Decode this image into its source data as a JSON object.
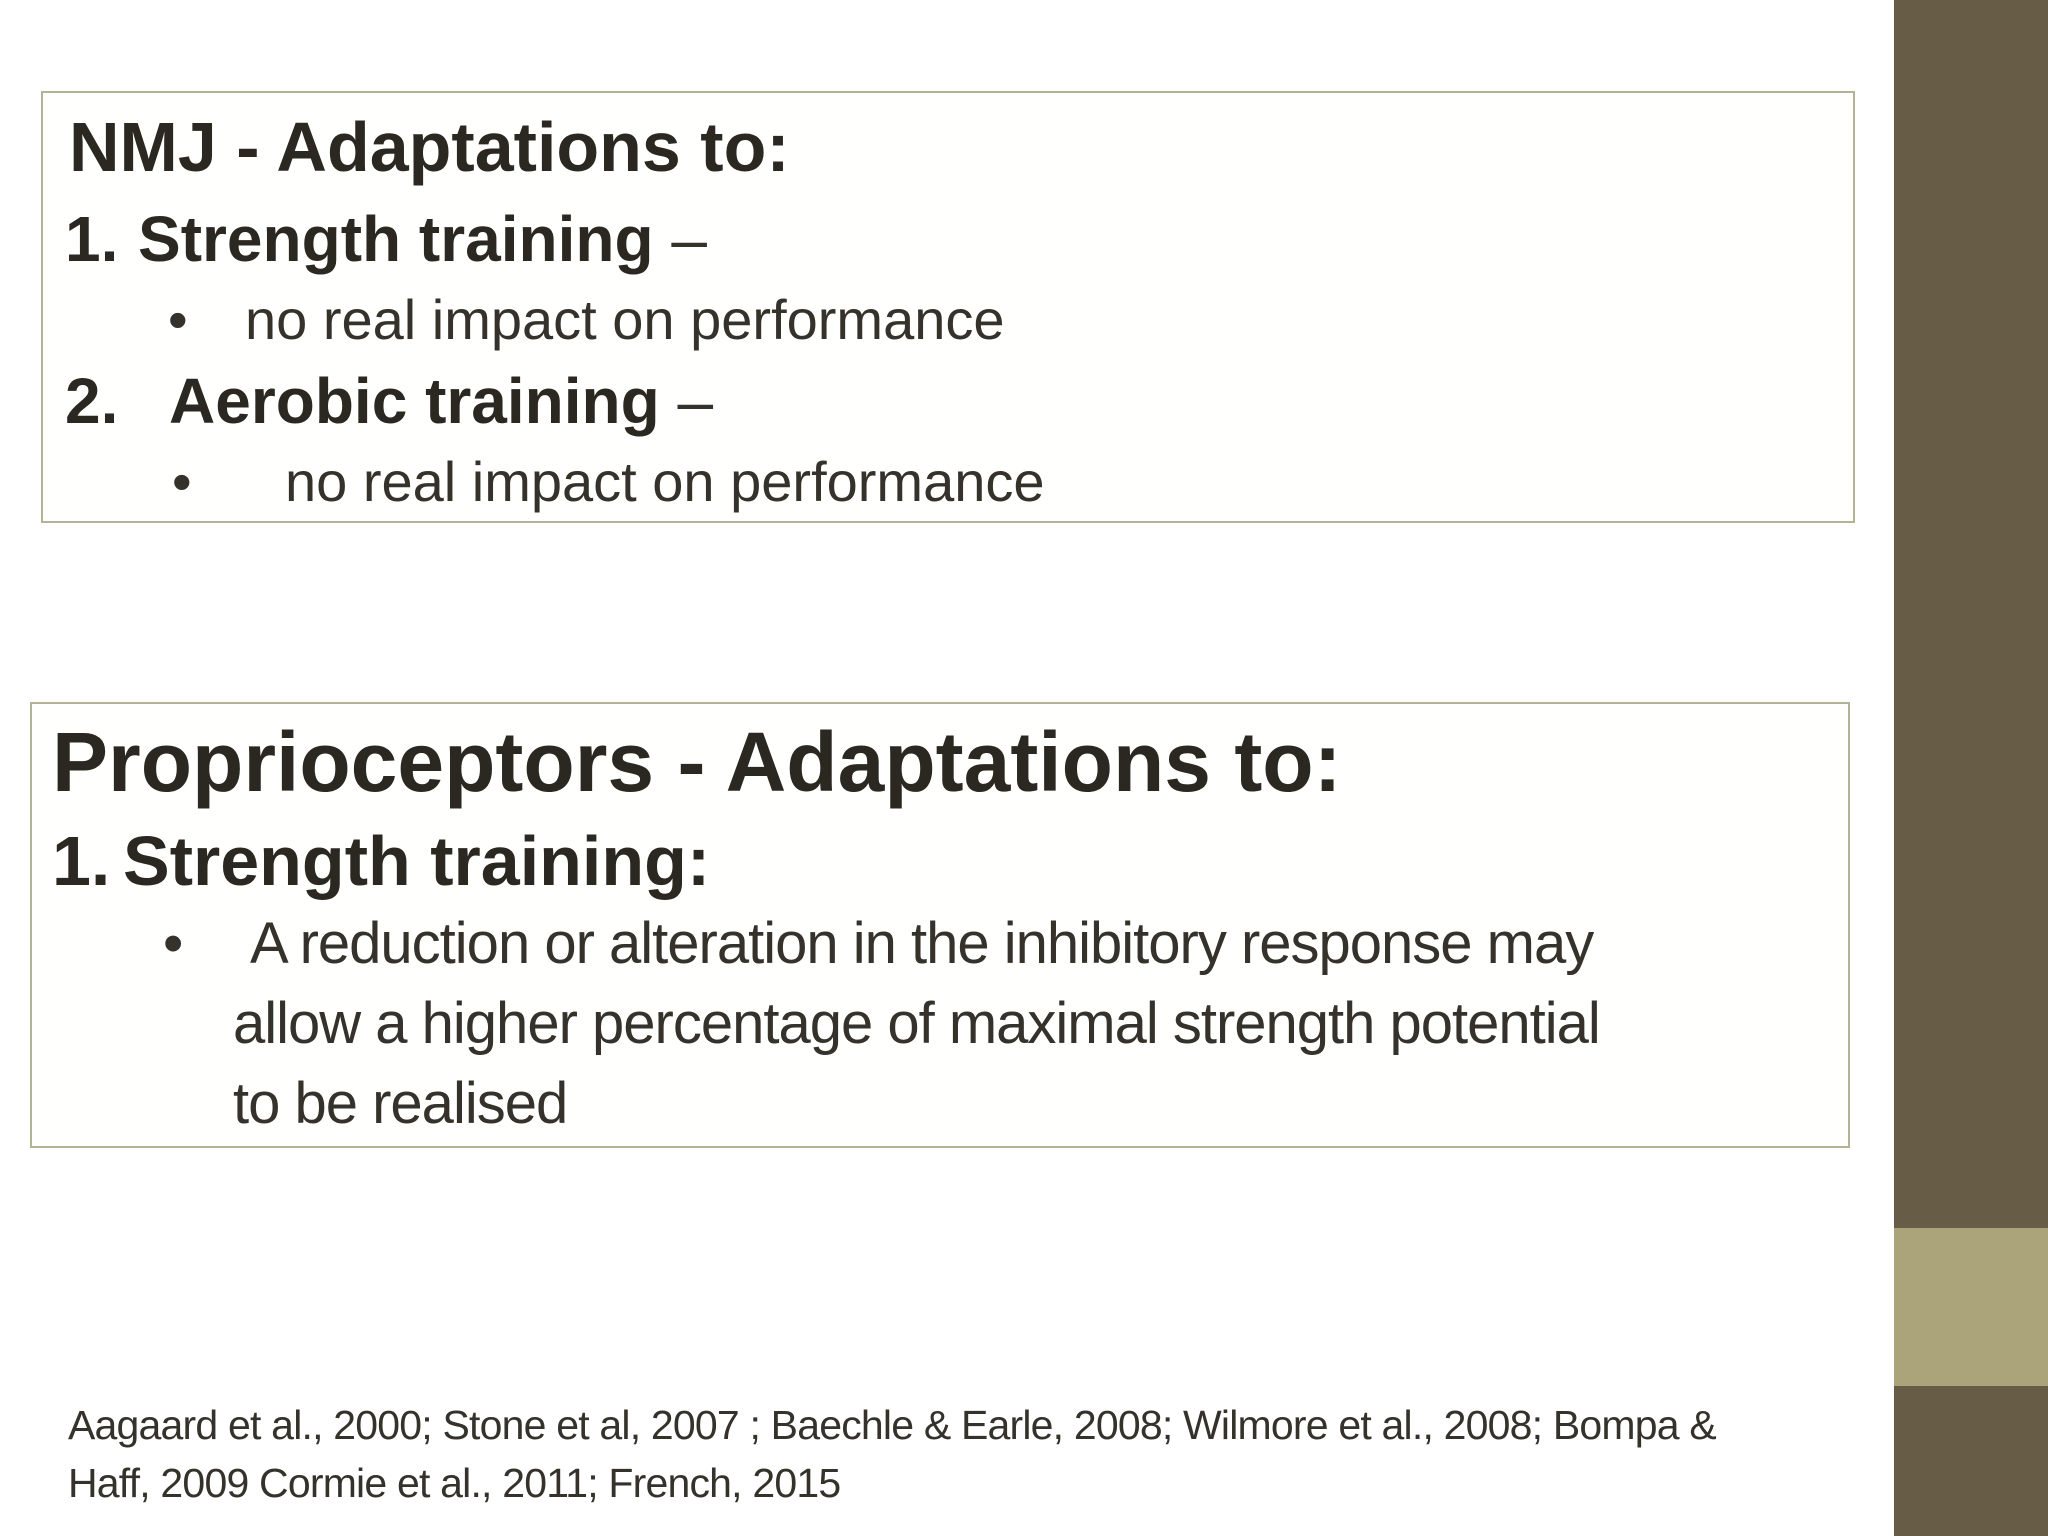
{
  "theme": {
    "background": "#ffffff",
    "box_border": "#b3b396",
    "box_fill": "#fffffe",
    "heading_text": "#2b2822",
    "body_text": "#35322b",
    "bar_dark": "#675d46",
    "bar_light": "#aba47a",
    "bullet_char": "•"
  },
  "nmj_box": {
    "title": "NMJ - Adaptations to:",
    "items": [
      {
        "number": "1.",
        "label": "Strength training",
        "dash": " –",
        "bullet": "no real impact on performance"
      },
      {
        "number": "2.",
        "label": "Aerobic training",
        "dash": " –",
        "bullet": "no real impact on performance"
      }
    ]
  },
  "proprioceptors_box": {
    "title": "Proprioceptors - Adaptations to:",
    "items": [
      {
        "number": "1.",
        "label": "Strength training:",
        "bullet_lines": [
          "A reduction or alteration in the inhibitory response may",
          "allow a higher percentage of maximal strength potential",
          "to be realised"
        ]
      }
    ]
  },
  "citations": {
    "lines": [
      "Aagaard et al., 2000; Stone et al, 2007 ; Baechle & Earle, 2008; Wilmore et al., 2008; Bompa &",
      "Haff, 2009 Cormie et al., 2011; French, 2015"
    ]
  }
}
